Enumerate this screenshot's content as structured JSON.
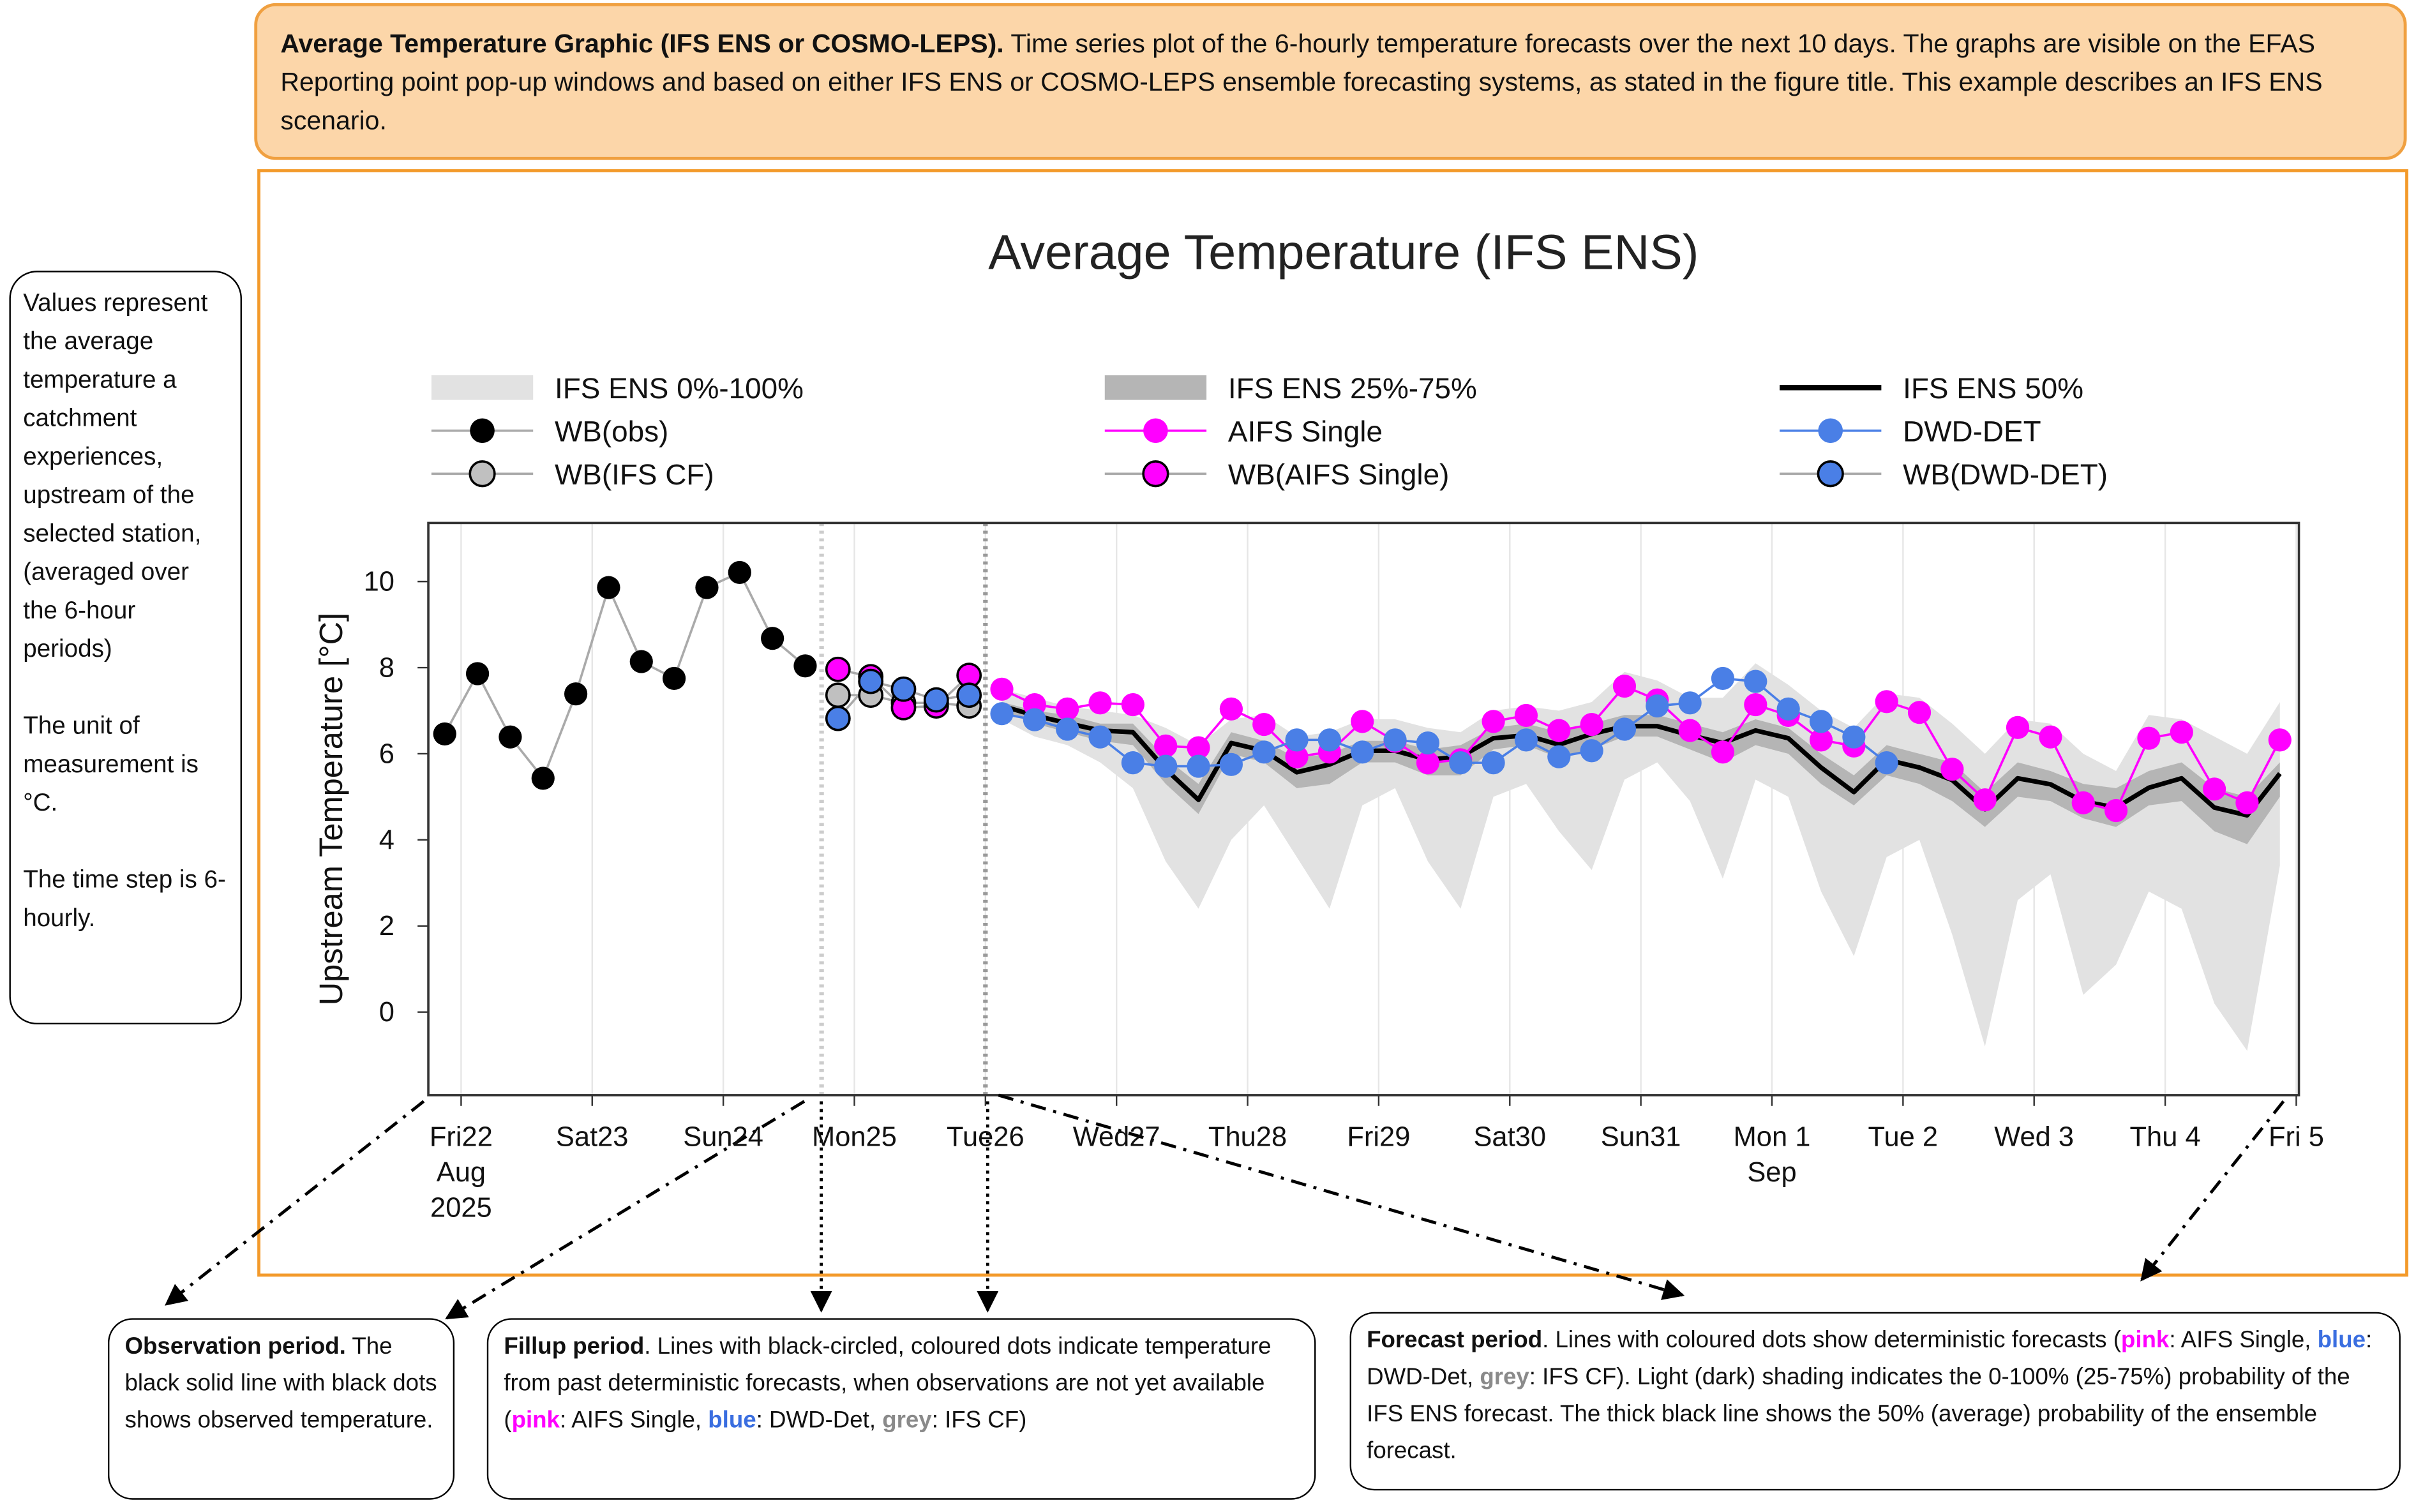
{
  "header": {
    "segments": [
      {
        "text": "Average Temperature Graphic (IFS ENS or COSMO-LEPS).",
        "style": "bold"
      },
      {
        "text": " Time series plot of the 6-hourly temperature forecasts over the next 10 days. The graphs are visible on the EFAS Reporting point pop-up windows and based on either IFS ENS or COSMO-LEPS ensemble forecasting systems, as stated in the figure title. This example describes an IFS ENS scenario."
      }
    ]
  },
  "side_note": {
    "paragraphs": [
      "Values represent the average temperature a catchment experiences, upstream of the selected station, (averaged over the 6-hour periods)",
      "The unit of measurement is °C.",
      "The time step is 6-hourly."
    ]
  },
  "annotations": [
    {
      "segments": [
        {
          "text": "Observation period.",
          "style": "bold"
        },
        {
          "text": " The black solid line with black dots shows observed temperature."
        }
      ]
    },
    {
      "segments": [
        {
          "text": "Fillup period",
          "style": "bold"
        },
        {
          "text": ". Lines with black-circled, coloured dots indicate temperature from past deterministic forecasts, when observations are not yet available ("
        },
        {
          "text": "pink",
          "style": "pink"
        },
        {
          "text": ": AIFS Single, "
        },
        {
          "text": "blue",
          "style": "blue"
        },
        {
          "text": ": DWD-Det, "
        },
        {
          "text": "grey",
          "style": "grey"
        },
        {
          "text": ": IFS CF)"
        }
      ]
    },
    {
      "segments": [
        {
          "text": "Forecast period",
          "style": "bold"
        },
        {
          "text": ". Lines with coloured dots show deterministic forecasts ("
        },
        {
          "text": "pink",
          "style": "pink"
        },
        {
          "text": ": AIFS Single, "
        },
        {
          "text": "blue",
          "style": "blue"
        },
        {
          "text": ": DWD-Det, "
        },
        {
          "text": "grey",
          "style": "grey"
        },
        {
          "text": ": IFS CF). Light (dark) shading indicates the 0-100% (25-75%) probability of the IFS ENS forecast. The thick black line shows the 50% (average) probability of the ensemble forecast."
        }
      ]
    }
  ],
  "chart_data": {
    "type": "line",
    "title": "Average Temperature (IFS ENS)",
    "y_label": "Upstream Temperature [°C]",
    "xlim": [
      -0.25,
      14.02
    ],
    "ylim": [
      -1.93,
      11.36
    ],
    "yticks": [
      0,
      2,
      4,
      6,
      8,
      10
    ],
    "grid": true,
    "xticks": [
      {
        "value": 0,
        "label": "Fri22\nAug\n2025"
      },
      {
        "value": 1,
        "label": "Sat23"
      },
      {
        "value": 2,
        "label": "Sun24"
      },
      {
        "value": 3,
        "label": "Mon25"
      },
      {
        "value": 4,
        "label": "Tue26"
      },
      {
        "value": 5,
        "label": "Wed27"
      },
      {
        "value": 6,
        "label": "Thu28"
      },
      {
        "value": 7,
        "label": "Fri29"
      },
      {
        "value": 8,
        "label": "Sat30"
      },
      {
        "value": 9,
        "label": "Sun31"
      },
      {
        "value": 10,
        "label": "Mon 1\nSep"
      },
      {
        "value": 11,
        "label": "Tue 2"
      },
      {
        "value": 12,
        "label": "Wed 3"
      },
      {
        "value": 13,
        "label": "Thu 4"
      },
      {
        "value": 14,
        "label": "Fri 5"
      }
    ],
    "vlines": [
      {
        "x": 2.75,
        "color": "#cccccc"
      },
      {
        "x": 4.0,
        "color": "#999999"
      }
    ],
    "x": [
      -0.125,
      0.125,
      0.375,
      0.625,
      0.875,
      1.125,
      1.375,
      1.625,
      1.875,
      2.125,
      2.375,
      2.625,
      2.875,
      3.125,
      3.375,
      3.625,
      3.875,
      4.125,
      4.375,
      4.625,
      4.875,
      5.125,
      5.375,
      5.625,
      5.875,
      6.125,
      6.375,
      6.625,
      6.875,
      7.125,
      7.375,
      7.625,
      7.875,
      8.125,
      8.375,
      8.625,
      8.875,
      9.125,
      9.375,
      9.625,
      9.875,
      10.125,
      10.375,
      10.625,
      10.875,
      11.125,
      11.375,
      11.625,
      11.875,
      12.125,
      12.375,
      12.625,
      12.875,
      13.125,
      13.375,
      13.625,
      13.875
    ],
    "series": [
      {
        "name": "IFS ENS 0%-100%",
        "mark": "band",
        "color": "#e2e2e2",
        "low": [
          null,
          null,
          null,
          null,
          null,
          null,
          null,
          null,
          null,
          null,
          null,
          null,
          null,
          null,
          null,
          null,
          null,
          6.8,
          6.4,
          6.2,
          5.8,
          5.2,
          3.5,
          2.4,
          4.0,
          4.8,
          3.6,
          2.4,
          4.8,
          5.2,
          3.5,
          2.4,
          5.0,
          5.3,
          4.2,
          3.3,
          5.4,
          5.8,
          4.9,
          3.1,
          5.4,
          5.0,
          2.8,
          1.3,
          3.6,
          4.0,
          1.8,
          -0.8,
          2.6,
          3.2,
          0.4,
          1.1,
          2.8,
          2.4,
          0.2,
          -0.9,
          3.4
        ],
        "high": [
          null,
          null,
          null,
          null,
          null,
          null,
          null,
          null,
          null,
          null,
          null,
          null,
          null,
          null,
          null,
          null,
          null,
          7.5,
          7.3,
          7.1,
          7.0,
          6.9,
          6.6,
          6.2,
          6.8,
          6.9,
          6.4,
          6.5,
          6.8,
          6.8,
          6.6,
          6.5,
          7.0,
          7.1,
          7.0,
          7.2,
          7.9,
          7.7,
          7.3,
          7.3,
          8.1,
          7.6,
          7.0,
          6.6,
          7.4,
          7.3,
          6.7,
          6.0,
          6.8,
          6.7,
          6.0,
          5.6,
          6.9,
          6.8,
          6.4,
          6.0,
          7.2
        ]
      },
      {
        "name": "IFS ENS 25%-75%",
        "mark": "band",
        "color": "#b5b5b5",
        "low": [
          null,
          null,
          null,
          null,
          null,
          null,
          null,
          null,
          null,
          null,
          null,
          null,
          null,
          null,
          null,
          null,
          null,
          7.0,
          6.7,
          6.5,
          6.3,
          6.2,
          5.3,
          4.6,
          6.0,
          5.8,
          5.2,
          5.3,
          5.8,
          5.8,
          5.5,
          5.5,
          6.1,
          6.2,
          5.9,
          6.1,
          6.4,
          6.4,
          6.1,
          5.8,
          6.2,
          6.0,
          5.3,
          4.8,
          5.5,
          5.3,
          4.9,
          4.3,
          5.0,
          4.9,
          4.5,
          4.3,
          4.8,
          4.9,
          4.2,
          3.9,
          5.0
        ],
        "high": [
          null,
          null,
          null,
          null,
          null,
          null,
          null,
          null,
          null,
          null,
          null,
          null,
          null,
          null,
          null,
          null,
          null,
          7.2,
          7.0,
          6.9,
          6.7,
          6.7,
          5.9,
          5.3,
          6.5,
          6.3,
          5.9,
          6.0,
          6.3,
          6.3,
          6.1,
          6.2,
          6.6,
          6.7,
          6.5,
          6.7,
          6.9,
          6.9,
          6.7,
          6.5,
          6.8,
          6.6,
          6.0,
          5.5,
          6.2,
          6.0,
          5.8,
          5.1,
          5.8,
          5.6,
          5.3,
          5.2,
          5.6,
          5.8,
          5.2,
          5.0,
          5.8
        ]
      },
      {
        "name": "IFS ENS 50%",
        "mark": "line",
        "color": "#000000",
        "values": [
          null,
          null,
          null,
          null,
          null,
          null,
          null,
          null,
          null,
          null,
          null,
          null,
          null,
          null,
          null,
          null,
          null,
          7.11,
          6.89,
          6.71,
          6.54,
          6.5,
          5.64,
          4.93,
          6.25,
          6.07,
          5.57,
          5.75,
          6.07,
          6.07,
          5.86,
          5.93,
          6.36,
          6.43,
          6.21,
          6.46,
          6.64,
          6.64,
          6.43,
          6.25,
          6.54,
          6.36,
          5.68,
          5.11,
          5.86,
          5.68,
          5.39,
          4.71,
          5.43,
          5.29,
          4.89,
          4.75,
          5.21,
          5.43,
          4.75,
          4.57,
          5.54
        ]
      },
      {
        "name": "WB(obs)",
        "mark": "line-markers",
        "color": "#000000",
        "line_color": "#aaaaaa",
        "values": [
          6.46,
          7.86,
          6.39,
          5.43,
          7.39,
          9.86,
          8.14,
          7.75,
          9.86,
          10.21,
          8.68,
          8.04,
          null,
          null,
          null,
          null,
          null,
          null,
          null,
          null,
          null,
          null,
          null,
          null,
          null,
          null,
          null,
          null,
          null,
          null,
          null,
          null,
          null,
          null,
          null,
          null,
          null,
          null,
          null,
          null,
          null,
          null,
          null,
          null,
          null,
          null,
          null,
          null,
          null,
          null,
          null,
          null,
          null,
          null,
          null,
          null,
          null
        ]
      },
      {
        "name": "AIFS Single",
        "mark": "line-markers",
        "color": "#ff00ff",
        "line_color": "#ff00ff",
        "values": [
          null,
          null,
          null,
          null,
          null,
          null,
          null,
          null,
          null,
          null,
          null,
          null,
          null,
          null,
          null,
          null,
          null,
          7.5,
          7.14,
          7.04,
          7.18,
          7.14,
          6.18,
          6.14,
          7.04,
          6.68,
          5.93,
          6.04,
          6.75,
          6.29,
          5.79,
          5.86,
          6.75,
          6.89,
          6.54,
          6.68,
          7.57,
          7.25,
          6.54,
          6.04,
          7.14,
          6.89,
          6.32,
          6.18,
          7.21,
          6.96,
          5.64,
          4.93,
          6.61,
          6.39,
          4.86,
          4.68,
          6.36,
          6.5,
          5.18,
          4.86,
          6.32
        ]
      },
      {
        "name": "DWD-DET",
        "mark": "line-markers",
        "color": "#4a7fe6",
        "line_color": "#4a7fe6",
        "values": [
          null,
          null,
          null,
          null,
          null,
          null,
          null,
          null,
          null,
          null,
          null,
          null,
          null,
          null,
          null,
          null,
          null,
          6.93,
          6.79,
          6.57,
          6.39,
          5.79,
          5.71,
          5.71,
          5.75,
          6.04,
          6.32,
          6.32,
          6.04,
          6.32,
          6.25,
          5.79,
          5.79,
          6.32,
          5.93,
          6.07,
          6.57,
          7.11,
          7.18,
          7.75,
          7.68,
          7.04,
          6.75,
          6.39,
          5.79,
          null,
          null,
          null,
          null,
          null,
          null,
          null,
          null,
          null,
          null,
          null,
          null
        ]
      },
      {
        "name": "WB(IFS CF)",
        "mark": "line-markers",
        "color": "#c0c0c0",
        "line_color": "#aaaaaa",
        "marker_edge": "#000000",
        "values": [
          null,
          null,
          null,
          null,
          null,
          null,
          null,
          null,
          null,
          null,
          null,
          null,
          7.36,
          7.36,
          7.18,
          7.18,
          7.11,
          null,
          null,
          null,
          null,
          null,
          null,
          null,
          null,
          null,
          null,
          null,
          null,
          null,
          null,
          null,
          null,
          null,
          null,
          null,
          null,
          null,
          null,
          null,
          null,
          null,
          null,
          null,
          null,
          null,
          null,
          null,
          null,
          null,
          null,
          null,
          null,
          null,
          null,
          null,
          null
        ]
      },
      {
        "name": "WB(AIFS Single)",
        "mark": "line-markers",
        "color": "#ff00ff",
        "line_color": "#aaaaaa",
        "marker_edge": "#000000",
        "values": [
          null,
          null,
          null,
          null,
          null,
          null,
          null,
          null,
          null,
          null,
          null,
          null,
          7.96,
          7.79,
          7.07,
          7.11,
          7.82,
          null,
          null,
          null,
          null,
          null,
          null,
          null,
          null,
          null,
          null,
          null,
          null,
          null,
          null,
          null,
          null,
          null,
          null,
          null,
          null,
          null,
          null,
          null,
          null,
          null,
          null,
          null,
          null,
          null,
          null,
          null,
          null,
          null,
          null,
          null,
          null,
          null,
          null,
          null,
          null
        ]
      },
      {
        "name": "WB(DWD-DET)",
        "mark": "line-markers",
        "color": "#4a7fe6",
        "line_color": "#aaaaaa",
        "marker_edge": "#000000",
        "values": [
          null,
          null,
          null,
          null,
          null,
          null,
          null,
          null,
          null,
          null,
          null,
          null,
          6.82,
          7.68,
          7.5,
          7.25,
          7.36,
          null,
          null,
          null,
          null,
          null,
          null,
          null,
          null,
          null,
          null,
          null,
          null,
          null,
          null,
          null,
          null,
          null,
          null,
          null,
          null,
          null,
          null,
          null,
          null,
          null,
          null,
          null,
          null,
          null,
          null,
          null,
          null,
          null,
          null,
          null,
          null,
          null,
          null,
          null,
          null
        ]
      }
    ]
  }
}
